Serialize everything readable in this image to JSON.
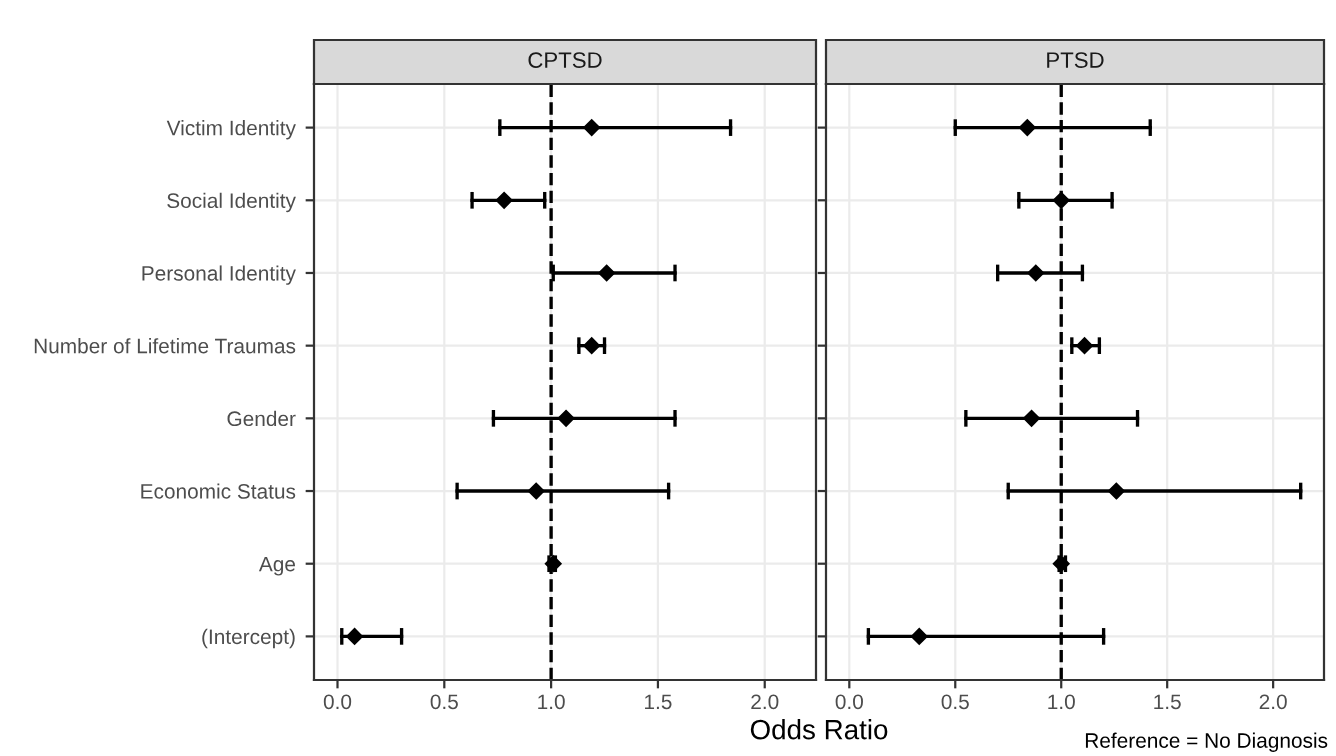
{
  "chart_data": [
    {
      "type": "scatter",
      "title": "CPTSD",
      "xlabel": "Odds Ratio",
      "orientation": "horizontal",
      "categories": [
        "Victim Identity",
        "Social Identity",
        "Personal Identity",
        "Number of Lifetime Traumas",
        "Gender",
        "Economic Status",
        "Age",
        "(Intercept)"
      ],
      "values": [
        1.19,
        0.78,
        1.26,
        1.19,
        1.07,
        0.93,
        1.01,
        0.08
      ],
      "errors": [
        [
          0.76,
          1.84
        ],
        [
          0.63,
          0.97
        ],
        [
          1.01,
          1.58
        ],
        [
          1.13,
          1.25
        ],
        [
          0.73,
          1.58
        ],
        [
          0.56,
          1.55
        ],
        [
          0.99,
          1.02
        ],
        [
          0.02,
          0.3
        ]
      ],
      "color": "#000000",
      "marker": "diamond",
      "xlim": [
        -0.11,
        2.24
      ],
      "xticks": [
        {
          "value": 0,
          "label": "0.0"
        },
        {
          "value": 0.5,
          "label": "0.5"
        },
        {
          "value": 1,
          "label": "1.0"
        },
        {
          "value": 1.5,
          "label": "1.5"
        },
        {
          "value": 2,
          "label": "2.0"
        }
      ],
      "ref_lines": [
        {
          "axis": "x",
          "value": 1,
          "line_style": "dashed",
          "color": "#000000"
        }
      ],
      "grid": true
    },
    {
      "type": "scatter",
      "title": "PTSD",
      "orientation": "horizontal",
      "categories": [
        null,
        null,
        null,
        null,
        null,
        null,
        null,
        null
      ],
      "values": [
        0.84,
        1.0,
        0.88,
        1.11,
        0.86,
        1.26,
        1.0,
        0.33
      ],
      "errors": [
        [
          0.5,
          1.42
        ],
        [
          0.8,
          1.24
        ],
        [
          0.7,
          1.1
        ],
        [
          1.05,
          1.18
        ],
        [
          0.55,
          1.36
        ],
        [
          0.75,
          2.13
        ],
        [
          0.99,
          1.02
        ],
        [
          0.09,
          1.2
        ]
      ],
      "color": "#000000",
      "marker": "diamond",
      "xlim": [
        -0.11,
        2.24
      ],
      "xticks": [
        {
          "value": 0,
          "label": "0.0"
        },
        {
          "value": 0.5,
          "label": "0.5"
        },
        {
          "value": 1,
          "label": "1.0"
        },
        {
          "value": 1.5,
          "label": "1.5"
        },
        {
          "value": 2,
          "label": "2.0"
        }
      ],
      "ref_lines": [
        {
          "axis": "x",
          "value": 1,
          "line_style": "dashed",
          "color": "#000000"
        }
      ],
      "grid": true,
      "tick_labels": "x",
      "annotations": [
        "Reference = No Diagnosis"
      ]
    }
  ]
}
